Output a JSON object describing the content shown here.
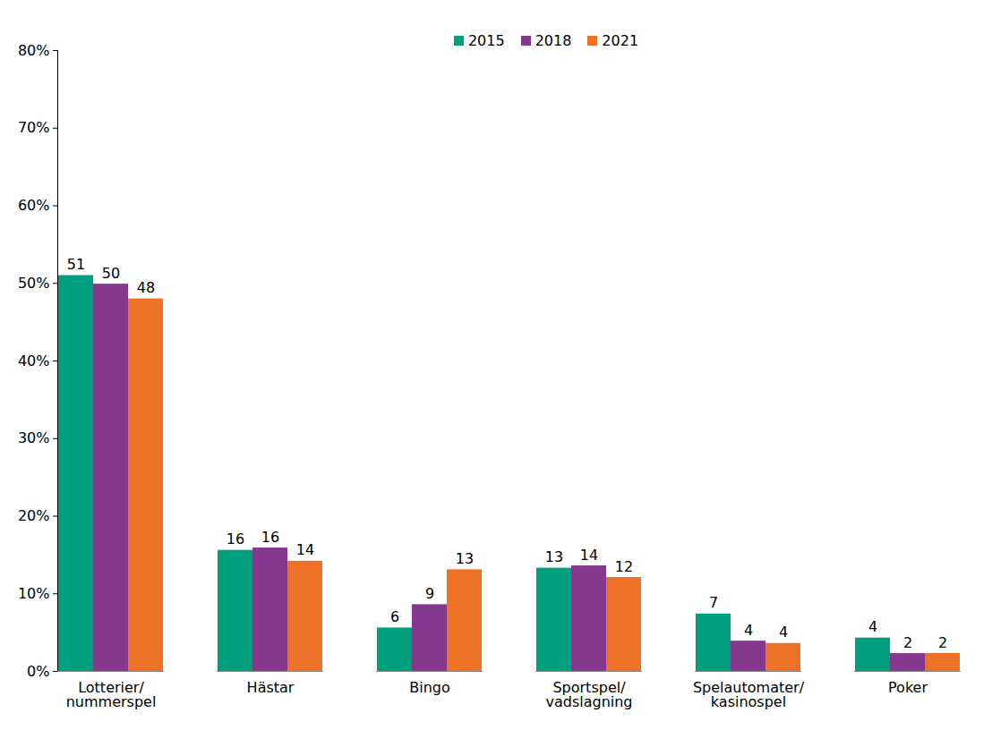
{
  "chart_data": {
    "type": "bar",
    "categories": [
      "Lotterier/\nnummerspel",
      "Hästar",
      "Bingo",
      "Sportspel/\nvadslagning",
      "Spelautomater/\nkasinospel",
      "Poker"
    ],
    "series": [
      {
        "name": "2015",
        "color": "#00a07e",
        "values": [
          51,
          15.6,
          5.6,
          13.3,
          7.4,
          4.3
        ],
        "value_labels": [
          "51",
          "16",
          "6",
          "13",
          "7",
          "4"
        ]
      },
      {
        "name": "2018",
        "color": "#84388e",
        "values": [
          49.9,
          15.9,
          8.6,
          13.6,
          3.9,
          2.3
        ],
        "value_labels": [
          "50",
          "16",
          "9",
          "14",
          "4",
          "2"
        ]
      },
      {
        "name": "2021",
        "color": "#ee7128",
        "values": [
          48,
          14.2,
          13.1,
          12.1,
          3.6,
          2.3
        ],
        "value_labels": [
          "48",
          "14",
          "13",
          "12",
          "4",
          "2"
        ]
      }
    ],
    "ylim": [
      0,
      80
    ],
    "yticks": [
      {
        "value": 0,
        "label": "0%"
      },
      {
        "value": 10,
        "label": "10%"
      },
      {
        "value": 20,
        "label": "20%"
      },
      {
        "value": 30,
        "label": "30%"
      },
      {
        "value": 40,
        "label": "40%"
      },
      {
        "value": 50,
        "label": "50%"
      },
      {
        "value": 60,
        "label": "60%"
      },
      {
        "value": 70,
        "label": "70%"
      },
      {
        "value": 80,
        "label": "80%"
      }
    ],
    "grid": false,
    "legend": "top",
    "data_labels": true
  }
}
